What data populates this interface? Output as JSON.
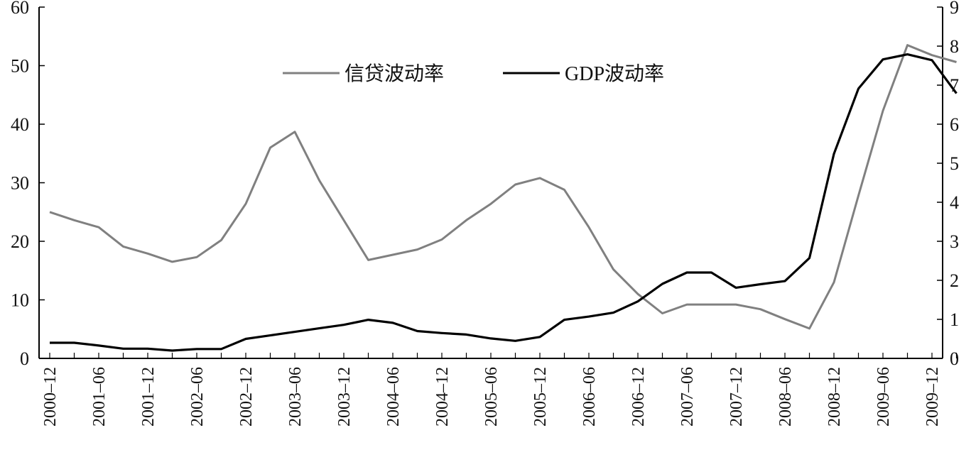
{
  "chart_data": {
    "type": "line",
    "x_labels": [
      "2000–12",
      "2001–06",
      "2001–12",
      "2002–06",
      "2002–12",
      "2003–06",
      "2003–12",
      "2004–06",
      "2004–12",
      "2005–06",
      "2005–12",
      "2006–06",
      "2006–12",
      "2007–06",
      "2007–12",
      "2008–06",
      "2008–12",
      "2009–06",
      "2009–12"
    ],
    "y_left": {
      "ticks": [
        0,
        10,
        20,
        30,
        40,
        50,
        60
      ],
      "range": [
        0,
        60
      ]
    },
    "y_right": {
      "ticks": [
        0,
        1,
        2,
        3,
        4,
        5,
        6,
        7,
        8,
        9
      ],
      "range": [
        0,
        9
      ]
    },
    "series": [
      {
        "name": "信贷波动率",
        "axis": "left",
        "color": "#808080",
        "values": [
          25.0,
          23.6,
          22.4,
          19.1,
          17.9,
          16.5,
          17.3,
          20.2,
          26.4,
          36.0,
          38.7,
          30.4,
          23.6,
          16.8,
          17.7,
          18.6,
          20.3,
          23.6,
          26.4,
          29.7,
          30.8,
          28.8,
          22.4,
          15.2,
          11.0,
          7.7,
          9.2,
          9.2,
          9.2,
          8.4,
          6.7,
          5.1,
          13.0,
          27.8,
          42.3,
          53.5,
          51.8,
          50.6
        ]
      },
      {
        "name": "GDP波动率",
        "axis": "right",
        "color": "#000000",
        "values": [
          0.4,
          0.4,
          0.33,
          0.25,
          0.25,
          0.2,
          0.24,
          0.24,
          0.5,
          0.59,
          0.68,
          0.77,
          0.86,
          0.99,
          0.91,
          0.7,
          0.65,
          0.61,
          0.51,
          0.45,
          0.55,
          0.99,
          1.07,
          1.17,
          1.46,
          1.91,
          2.2,
          2.2,
          1.81,
          1.9,
          1.98,
          2.57,
          5.24,
          6.91,
          7.66,
          7.79,
          7.64,
          6.79
        ]
      }
    ],
    "legend_position": "top-center",
    "grid": false
  }
}
